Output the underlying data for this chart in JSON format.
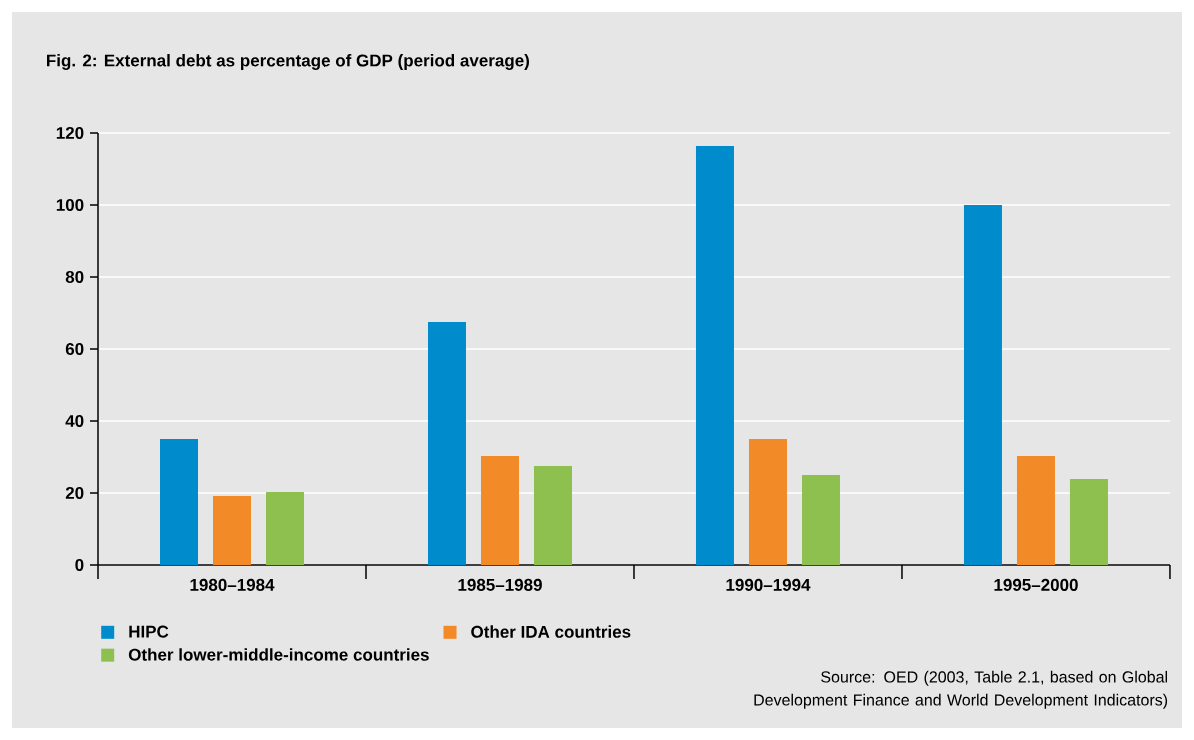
{
  "chart_data": {
    "type": "bar",
    "title": "Fig. 2: External debt as percentage of GDP (period average)",
    "categories": [
      "1980–1984",
      "1985–1989",
      "1990–1994",
      "1995–2000"
    ],
    "series": [
      {
        "name": "HIPC",
        "color": "#008ccc",
        "values": [
          35,
          67.5,
          116.4,
          100
        ]
      },
      {
        "name": "Other IDA countries",
        "color": "#f18a27",
        "values": [
          19.2,
          30.3,
          35,
          30.3
        ]
      },
      {
        "name": "Other lower-middle-income countries",
        "color": "#8dc04f",
        "values": [
          20.3,
          27.5,
          25,
          23.9
        ]
      }
    ],
    "ylim": [
      0,
      120
    ],
    "yticks": [
      0,
      20,
      40,
      60,
      80,
      100,
      120
    ],
    "grid": "y",
    "legend": "bottom left",
    "annotations": [
      "Source: OED (2003, Table 2.1, based on Global Development Finance and World Development Indicators)"
    ]
  }
}
